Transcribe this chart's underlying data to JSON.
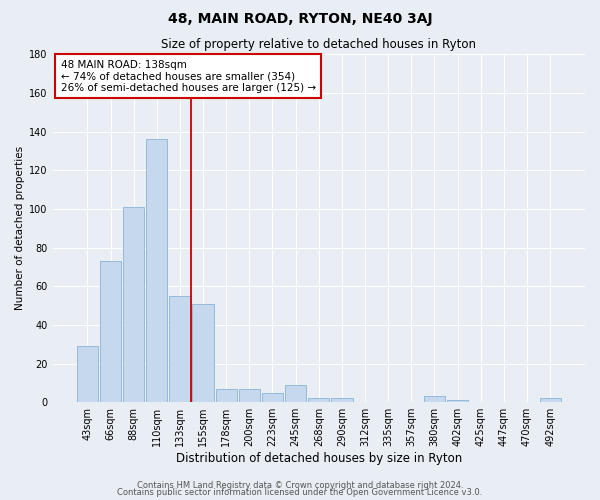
{
  "title": "48, MAIN ROAD, RYTON, NE40 3AJ",
  "subtitle": "Size of property relative to detached houses in Ryton",
  "xlabel": "Distribution of detached houses by size in Ryton",
  "ylabel": "Number of detached properties",
  "bar_labels": [
    "43sqm",
    "66sqm",
    "88sqm",
    "110sqm",
    "133sqm",
    "155sqm",
    "178sqm",
    "200sqm",
    "223sqm",
    "245sqm",
    "268sqm",
    "290sqm",
    "312sqm",
    "335sqm",
    "357sqm",
    "380sqm",
    "402sqm",
    "425sqm",
    "447sqm",
    "470sqm",
    "492sqm"
  ],
  "bar_values": [
    29,
    73,
    101,
    136,
    55,
    51,
    7,
    7,
    5,
    9,
    2,
    2,
    0,
    0,
    0,
    3,
    1,
    0,
    0,
    0,
    2
  ],
  "bar_color": "#c5d8ed",
  "bar_edge_color": "#8ab4d4",
  "vline_color": "#cc0000",
  "annotation_title": "48 MAIN ROAD: 138sqm",
  "annotation_line1": "← 74% of detached houses are smaller (354)",
  "annotation_line2": "26% of semi-detached houses are larger (125) →",
  "annotation_box_edgecolor": "#cc0000",
  "ylim": [
    0,
    180
  ],
  "yticks": [
    0,
    20,
    40,
    60,
    80,
    100,
    120,
    140,
    160,
    180
  ],
  "footer1": "Contains HM Land Registry data © Crown copyright and database right 2024.",
  "footer2": "Contains public sector information licensed under the Open Government Licence v3.0.",
  "bg_color": "#e8eef4",
  "plot_bg_color": "#e8eef4",
  "grid_color": "#ffffff",
  "title_fontsize": 10,
  "subtitle_fontsize": 8.5,
  "xlabel_fontsize": 8.5,
  "ylabel_fontsize": 7.5,
  "tick_fontsize": 7,
  "annotation_fontsize": 7.5,
  "footer_fontsize": 6
}
